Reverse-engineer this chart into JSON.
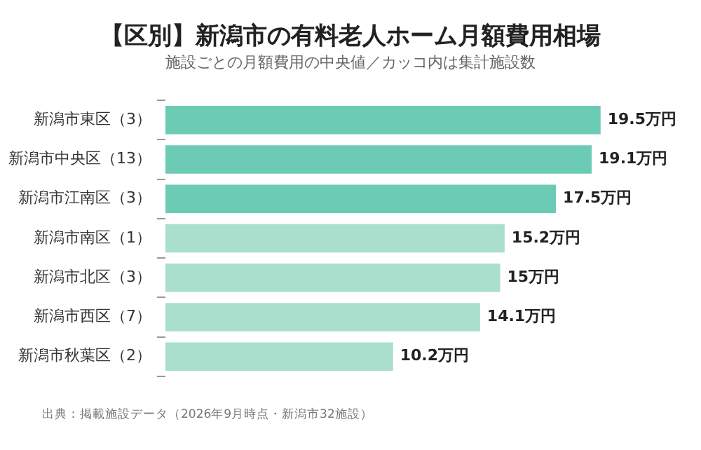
{
  "chart_data": {
    "type": "bar",
    "orientation": "horizontal",
    "title": "【区別】新潟市の有料老人ホーム月額費用相場",
    "subtitle": "施設ごとの月額費用の中央値／カッコ内は集計施設数",
    "categories": [
      "新潟市東区（3）",
      "新潟市中央区（13）",
      "新潟市江南区（3）",
      "新潟市南区（1）",
      "新潟市北区（3）",
      "新潟市西区（7）",
      "新潟市秋葉区（2）"
    ],
    "values": [
      19.5,
      19.1,
      17.5,
      15.2,
      15,
      14.1,
      10.2
    ],
    "colors": [
      "#6ccbb4",
      "#6ccbb4",
      "#6ccbb4",
      "#a9dfcc",
      "#a9dfcc",
      "#a9dfcc",
      "#a9dfcc"
    ],
    "value_labels": [
      "19.5万円",
      "19.1万円",
      "17.5万円",
      "15.2万円",
      "15万円",
      "14.1万円",
      "10.2万円"
    ],
    "xlim": [
      0,
      24
    ],
    "tick_labels": "y",
    "grid": false,
    "legend": false,
    "annotations": [
      "出典：掲載施設データ（2026年9月時点・新潟市32施設）"
    ]
  }
}
